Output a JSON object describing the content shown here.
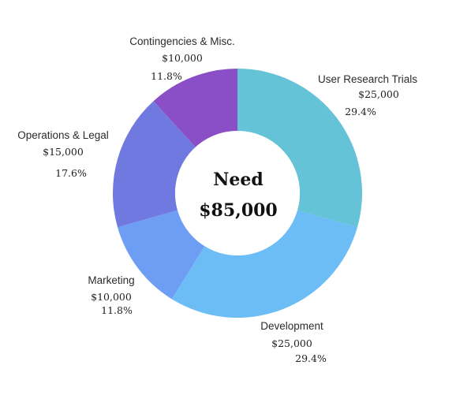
{
  "chart_data": {
    "type": "pie",
    "donut": true,
    "center_title": "Need",
    "center_value": "$85,000",
    "slices": [
      {
        "label": "User Research Trials",
        "value": 25000,
        "amount": "$25,000",
        "percent": "29.4%",
        "color": "#64C3D6"
      },
      {
        "label": "Development",
        "value": 25000,
        "amount": "$25,000",
        "percent": "29.4%",
        "color": "#6CBCF6"
      },
      {
        "label": "Marketing",
        "value": 10000,
        "amount": "$10,000",
        "percent": "11.8%",
        "color": "#6E9EF4"
      },
      {
        "label": "Operations & Legal",
        "value": 15000,
        "amount": "$15,000",
        "percent": "17.6%",
        "color": "#7079E0"
      },
      {
        "label": "Contingencies & Misc.",
        "value": 10000,
        "amount": "$10,000",
        "percent": "11.8%",
        "color": "#8A4FC6"
      }
    ]
  }
}
